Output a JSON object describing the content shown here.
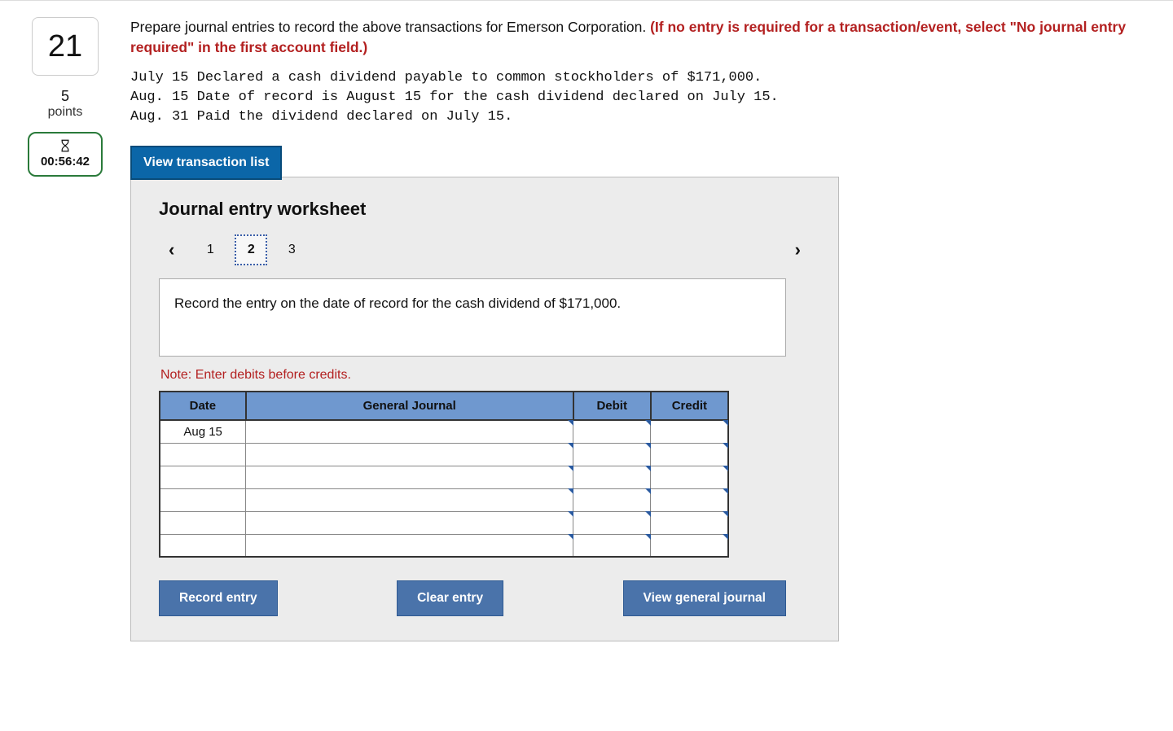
{
  "sidebar": {
    "question_number": "21",
    "points_value": "5",
    "points_label": "points",
    "timer": "00:56:42"
  },
  "instructions": {
    "lead": "Prepare journal entries to record the above transactions for Emerson Corporation. ",
    "red": "(If no entry is required for a transaction/event, select \"No journal entry required\" in the first account field.)"
  },
  "transactions_text": "July 15 Declared a cash dividend payable to common stockholders of $171,000.\nAug. 15 Date of record is August 15 for the cash dividend declared on July 15.\nAug. 31 Paid the dividend declared on July 15.",
  "view_transaction_list_label": "View transaction list",
  "worksheet": {
    "title": "Journal entry worksheet",
    "pages": [
      "1",
      "2",
      "3"
    ],
    "active_page_index": 1,
    "step_instruction": "Record the entry on the date of record for the cash dividend of $171,000.",
    "note": "Note: Enter debits before credits.",
    "headers": {
      "date": "Date",
      "gj": "General Journal",
      "debit": "Debit",
      "credit": "Credit"
    },
    "rows": [
      {
        "date": "Aug 15",
        "gj": "",
        "debit": "",
        "credit": ""
      },
      {
        "date": "",
        "gj": "",
        "debit": "",
        "credit": ""
      },
      {
        "date": "",
        "gj": "",
        "debit": "",
        "credit": ""
      },
      {
        "date": "",
        "gj": "",
        "debit": "",
        "credit": ""
      },
      {
        "date": "",
        "gj": "",
        "debit": "",
        "credit": ""
      },
      {
        "date": "",
        "gj": "",
        "debit": "",
        "credit": ""
      }
    ],
    "buttons": {
      "record": "Record entry",
      "clear": "Clear entry",
      "view_gj": "View general journal"
    }
  },
  "colors": {
    "primary_button": "#0b66a8",
    "secondary_button": "#4a73aa",
    "table_header": "#6f98cf",
    "panel_bg": "#ececec",
    "warning_text": "#b32020",
    "timer_border": "#2a7a3a"
  }
}
